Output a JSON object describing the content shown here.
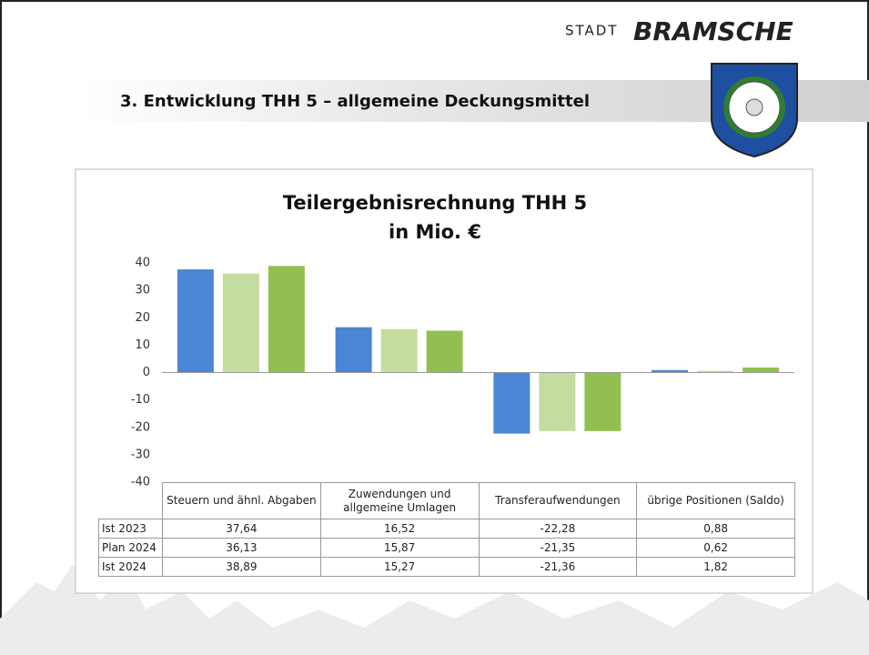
{
  "header": {
    "city_prefix": "STADT",
    "city": "BRAMSCHE",
    "title": "3. Entwicklung THH 5 – allgemeine Deckungsmittel"
  },
  "chart_data": {
    "type": "bar",
    "title": "Teilergebnisrechnung THH 5",
    "subtitle": "in Mio. €",
    "categories": [
      "Steuern und ähnl. Abgaben",
      "Zuwendungen und allgemeine Umlagen",
      "Transferaufwendungen",
      "übrige Positionen (Saldo)"
    ],
    "series": [
      {
        "name": "Ist 2023",
        "color": "#4a86d4",
        "values": [
          37.64,
          16.52,
          -22.28,
          0.88
        ],
        "value_labels": [
          "37,64",
          "16,52",
          "-22,28",
          "0,88"
        ]
      },
      {
        "name": "Plan 2024",
        "color": "#c5dca0",
        "values": [
          36.13,
          15.87,
          -21.35,
          0.62
        ],
        "value_labels": [
          "36,13",
          "15,87",
          "-21,35",
          "0,62"
        ]
      },
      {
        "name": "Ist 2024",
        "color": "#92c050",
        "values": [
          38.89,
          15.27,
          -21.36,
          1.82
        ],
        "value_labels": [
          "38,89",
          "15,27",
          "-21,36",
          "1,82"
        ]
      }
    ],
    "ylim": [
      -40,
      40
    ],
    "yticks": [
      -40,
      -30,
      -20,
      -10,
      0,
      10,
      20,
      30,
      40
    ],
    "grid": false
  }
}
